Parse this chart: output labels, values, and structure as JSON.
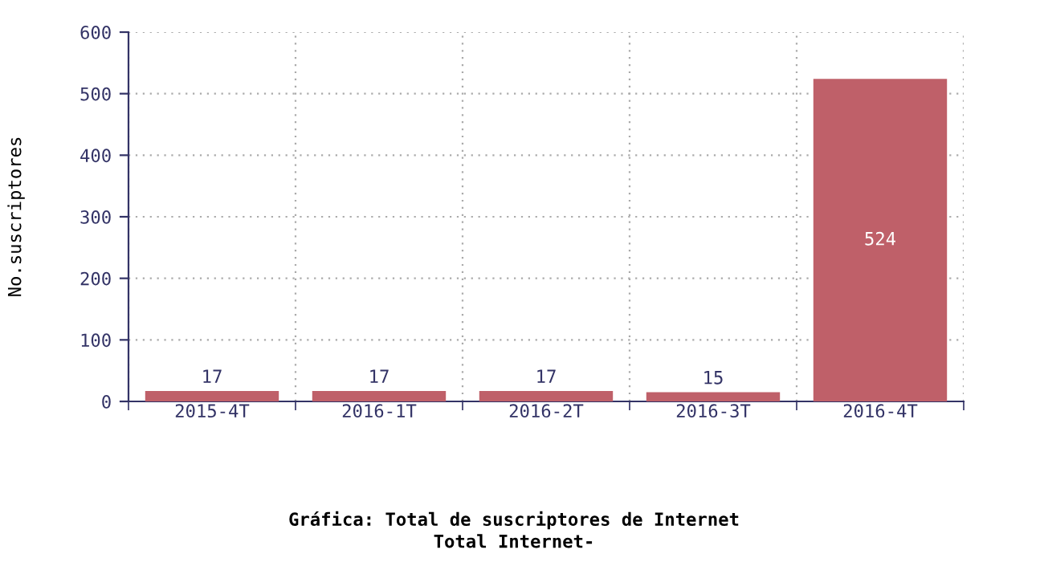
{
  "chart_data": {
    "type": "bar",
    "title": "Gráfica: Total de suscriptores de Internet",
    "subtitle": "Total Internet-",
    "ylabel": "No.suscriptores",
    "categories": [
      "2015-4T",
      "2016-1T",
      "2016-2T",
      "2016-3T",
      "2016-4T"
    ],
    "values": [
      17,
      17,
      17,
      15,
      524
    ],
    "color": "#bf6069",
    "ylim": [
      0,
      600
    ],
    "yticks": [
      0,
      100,
      200,
      300,
      400,
      500,
      600
    ],
    "grid": true,
    "data_labels": true
  }
}
